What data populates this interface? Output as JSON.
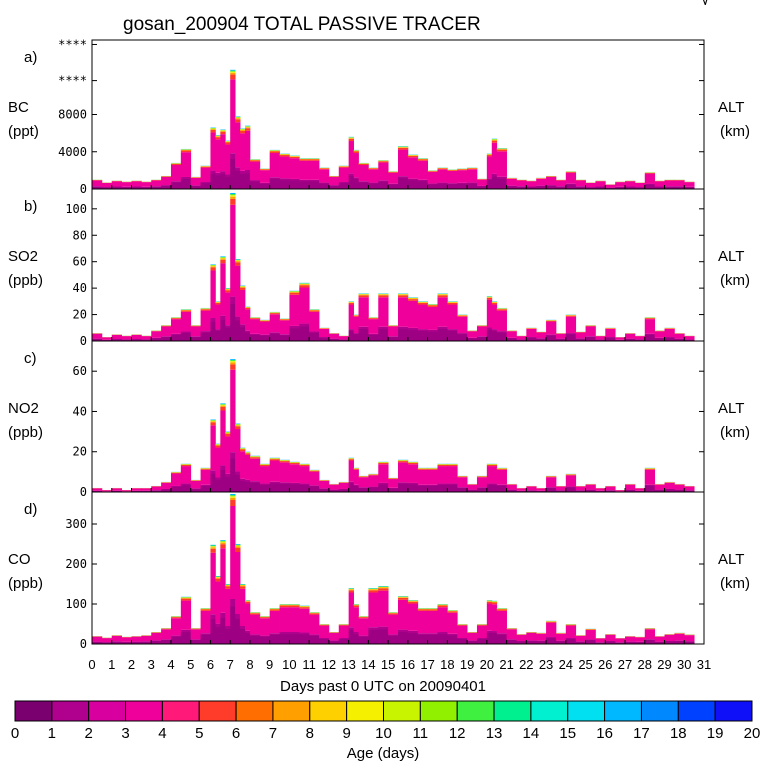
{
  "chart_data": [
    {
      "type": "area",
      "panel_label": "a)",
      "species": "BC",
      "units": "(ppt)",
      "right_label": "ALT",
      "right_units": "(km)",
      "yticks": [
        "0",
        "4000",
        "8000",
        "****",
        "****"
      ],
      "ylim": [
        0,
        16000
      ],
      "x": [
        0,
        0.5,
        1,
        1.5,
        2,
        2.5,
        3,
        3.5,
        4,
        4.5,
        5,
        5.5,
        6,
        6.25,
        6.5,
        6.75,
        7,
        7.25,
        7.5,
        7.75,
        8,
        8.5,
        9,
        9.5,
        10,
        10.5,
        11,
        11.5,
        12,
        12.5,
        13,
        13.25,
        13.5,
        14,
        14.5,
        15,
        15.5,
        16,
        16.5,
        17,
        17.5,
        18,
        18.5,
        19,
        19.5,
        20,
        20.25,
        20.5,
        21,
        21.5,
        22,
        22.5,
        23,
        23.5,
        24,
        24.5,
        25,
        25.5,
        26,
        26.5,
        27,
        27.5,
        28,
        28.5,
        29,
        29.5,
        30
      ],
      "values": [
        1000,
        700,
        900,
        800,
        900,
        800,
        1000,
        1400,
        2800,
        4300,
        1300,
        2500,
        6600,
        5800,
        6400,
        5200,
        12800,
        7800,
        6500,
        6800,
        3200,
        2200,
        4200,
        3800,
        3600,
        3300,
        3300,
        2300,
        1400,
        2500,
        5600,
        4200,
        2800,
        2300,
        3100,
        1900,
        4600,
        3700,
        3300,
        2000,
        2300,
        2100,
        2200,
        2300,
        1100,
        3800,
        5400,
        4400,
        1200,
        1000,
        900,
        1200,
        1400,
        1000,
        1900,
        1000,
        700,
        900,
        500,
        800,
        900,
        700,
        1800,
        900,
        1000,
        1000,
        800
      ]
    },
    {
      "type": "area",
      "panel_label": "b)",
      "species": "SO2",
      "units": "(ppb)",
      "right_label": "ALT",
      "right_units": "(km)",
      "yticks": [
        "0",
        "20",
        "40",
        "60",
        "80",
        "100"
      ],
      "ylim": [
        0,
        115
      ],
      "x": [
        0,
        0.5,
        1,
        1.5,
        2,
        2.5,
        3,
        3.5,
        4,
        4.5,
        5,
        5.5,
        6,
        6.25,
        6.5,
        6.75,
        7,
        7.25,
        7.5,
        7.75,
        8,
        8.5,
        9,
        9.5,
        10,
        10.5,
        11,
        11.5,
        12,
        12.5,
        13,
        13.25,
        13.5,
        14,
        14.5,
        15,
        15.5,
        16,
        16.5,
        17,
        17.5,
        18,
        18.5,
        19,
        19.5,
        20,
        20.25,
        20.5,
        21,
        21.5,
        22,
        22.5,
        23,
        23.5,
        24,
        24.5,
        25,
        25.5,
        26,
        26.5,
        27,
        27.5,
        28,
        28.5,
        29,
        29.5,
        30
      ],
      "values": [
        6,
        3,
        5,
        4,
        5,
        4,
        8,
        12,
        18,
        24,
        12,
        25,
        58,
        30,
        64,
        40,
        112,
        62,
        42,
        26,
        18,
        16,
        22,
        17,
        38,
        44,
        24,
        10,
        6,
        4,
        30,
        20,
        36,
        18,
        36,
        12,
        36,
        33,
        30,
        28,
        36,
        30,
        20,
        8,
        12,
        34,
        30,
        25,
        8,
        4,
        10,
        7,
        16,
        6,
        20,
        7,
        12,
        4,
        10,
        3,
        6,
        4,
        18,
        8,
        10,
        6,
        4
      ]
    },
    {
      "type": "area",
      "panel_label": "c)",
      "species": "NO2",
      "units": "(ppb)",
      "right_label": "ALT",
      "right_units": "(km)",
      "yticks": [
        "0",
        "20",
        "40",
        "60"
      ],
      "ylim": [
        0,
        75
      ],
      "x": [
        0,
        0.5,
        1,
        1.5,
        2,
        2.5,
        3,
        3.5,
        4,
        4.5,
        5,
        5.5,
        6,
        6.25,
        6.5,
        6.75,
        7,
        7.25,
        7.5,
        7.75,
        8,
        8.5,
        9,
        9.5,
        10,
        10.5,
        11,
        11.5,
        12,
        12.5,
        13,
        13.25,
        13.5,
        14,
        14.5,
        15,
        15.5,
        16,
        16.5,
        17,
        17.5,
        18,
        18.5,
        19,
        19.5,
        20,
        20.25,
        20.5,
        21,
        21.5,
        22,
        22.5,
        23,
        23.5,
        24,
        24.5,
        25,
        25.5,
        26,
        26.5,
        27,
        27.5,
        28,
        28.5,
        29,
        29.5,
        30
      ],
      "values": [
        2,
        1,
        2,
        1,
        2,
        2,
        3,
        5,
        10,
        14,
        6,
        12,
        36,
        24,
        44,
        30,
        66,
        34,
        22,
        20,
        18,
        14,
        17,
        16,
        15,
        14,
        11,
        6,
        4,
        5,
        17,
        12,
        8,
        9,
        15,
        7,
        16,
        15,
        12,
        12,
        14,
        14,
        8,
        4,
        8,
        14,
        14,
        12,
        4,
        2,
        3,
        2,
        8,
        3,
        9,
        3,
        4,
        2,
        3,
        1,
        4,
        2,
        12,
        4,
        5,
        4,
        3
      ]
    },
    {
      "type": "area",
      "panel_label": "d)",
      "species": "CO",
      "units": "(ppb)",
      "right_label": "ALT",
      "right_units": "(km)",
      "yticks": [
        "0",
        "100",
        "200",
        "300"
      ],
      "ylim": [
        0,
        380
      ],
      "x": [
        0,
        0.5,
        1,
        1.5,
        2,
        2.5,
        3,
        3.5,
        4,
        4.5,
        5,
        5.5,
        6,
        6.25,
        6.5,
        6.75,
        7,
        7.25,
        7.5,
        7.75,
        8,
        8.5,
        9,
        9.5,
        10,
        10.5,
        11,
        11.5,
        12,
        12.5,
        13,
        13.25,
        13.5,
        14,
        14.5,
        15,
        15.5,
        16,
        16.5,
        17,
        17.5,
        18,
        18.5,
        19,
        19.5,
        20,
        20.25,
        20.5,
        21,
        21.5,
        22,
        22.5,
        23,
        23.5,
        24,
        24.5,
        25,
        25.5,
        26,
        26.5,
        27,
        27.5,
        28,
        28.5,
        29,
        29.5,
        30
      ],
      "values": [
        20,
        16,
        22,
        18,
        20,
        22,
        30,
        40,
        70,
        118,
        40,
        90,
        248,
        170,
        260,
        150,
        375,
        250,
        150,
        110,
        80,
        70,
        90,
        100,
        100,
        96,
        80,
        50,
        30,
        50,
        140,
        100,
        70,
        140,
        145,
        80,
        120,
        110,
        90,
        90,
        100,
        85,
        50,
        30,
        50,
        110,
        108,
        90,
        40,
        25,
        30,
        28,
        58,
        28,
        50,
        22,
        38,
        15,
        25,
        15,
        20,
        18,
        40,
        20,
        25,
        28,
        24
      ]
    }
  ],
  "chart_title": "gosan_200904 TOTAL PASSIVE TRACER",
  "corner_mark": "√",
  "xaxis": {
    "label": "Days past 0 UTC on 20090401",
    "ticks": [
      "0",
      "1",
      "2",
      "3",
      "4",
      "5",
      "6",
      "7",
      "8",
      "9",
      "10",
      "11",
      "12",
      "13",
      "14",
      "15",
      "16",
      "17",
      "18",
      "19",
      "20",
      "21",
      "22",
      "23",
      "24",
      "25",
      "26",
      "27",
      "28",
      "29",
      "30",
      "31"
    ],
    "xlim": [
      0,
      31
    ]
  },
  "colorbar": {
    "label": "Age (days)",
    "ticks": [
      "0",
      "1",
      "2",
      "3",
      "4",
      "5",
      "6",
      "7",
      "8",
      "9",
      "10",
      "11",
      "12",
      "13",
      "14",
      "15",
      "16",
      "17",
      "18",
      "19",
      "20"
    ],
    "colors": [
      "#7a0070",
      "#b0008e",
      "#d8009e",
      "#f0009a",
      "#ff1a7a",
      "#ff3c2a",
      "#ff6e00",
      "#ffa000",
      "#ffd000",
      "#f4f000",
      "#c8f400",
      "#90f000",
      "#40f040",
      "#00f090",
      "#00f0d0",
      "#00e0f0",
      "#00b8ff",
      "#0088ff",
      "#0040ff",
      "#1010f8",
      "#7020ff"
    ]
  }
}
